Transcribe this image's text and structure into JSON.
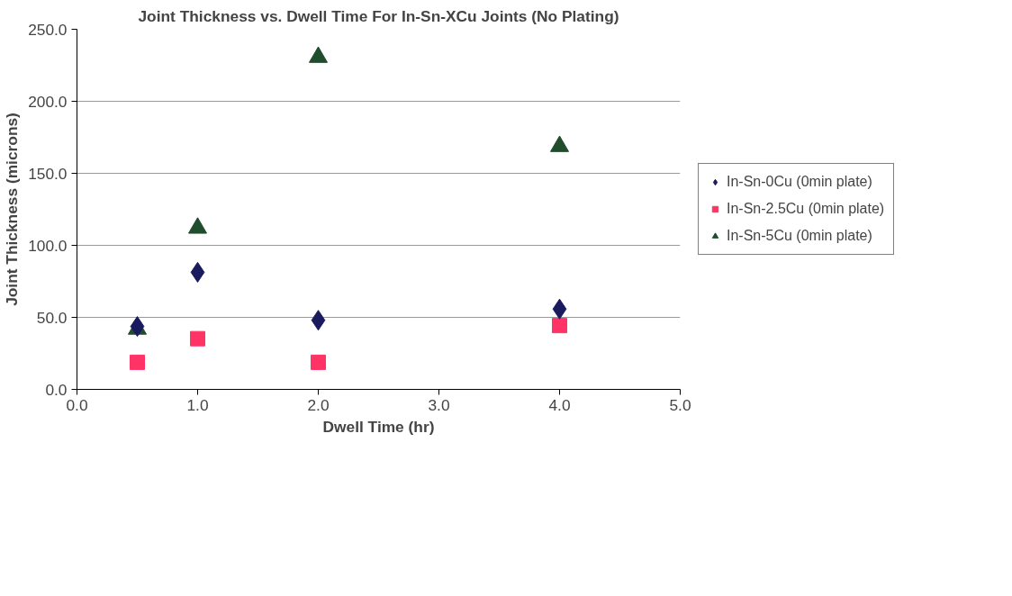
{
  "chart_data": {
    "type": "scatter",
    "title": "Joint Thickness vs. Dwell Time For In-Sn-XCu Joints (No Plating)",
    "xlabel": "Dwell Time (hr)",
    "ylabel": "Joint Thickness (microns)",
    "xlim": [
      0,
      5
    ],
    "ylim": [
      0,
      250
    ],
    "xticks": [
      {
        "value": 0,
        "label": "0.0"
      },
      {
        "value": 1,
        "label": "1.0"
      },
      {
        "value": 2,
        "label": "2.0"
      },
      {
        "value": 3,
        "label": "3.0"
      },
      {
        "value": 4,
        "label": "4.0"
      },
      {
        "value": 5,
        "label": "5.0"
      }
    ],
    "yticks": [
      {
        "value": 0,
        "label": "0.0"
      },
      {
        "value": 50,
        "label": "50.0"
      },
      {
        "value": 100,
        "label": "100.0"
      },
      {
        "value": 150,
        "label": "150.0"
      },
      {
        "value": 200,
        "label": "200.0"
      },
      {
        "value": 250,
        "label": "250.0"
      }
    ],
    "grid": "y",
    "legend": "right",
    "series": [
      {
        "name": "In-Sn-0Cu (0min plate)",
        "color": "#1a1a5e",
        "marker": "diamond",
        "x": [
          0.5,
          1,
          2,
          4
        ],
        "values": [
          43.7,
          81.3,
          48,
          55.8
        ]
      },
      {
        "name": "In-Sn-2.5Cu (0min plate)",
        "color": "#ff3366",
        "marker": "square",
        "x": [
          0.5,
          1,
          2,
          4
        ],
        "values": [
          18.8,
          35.2,
          18.8,
          44.3
        ]
      },
      {
        "name": "In-Sn-5Cu (0min plate)",
        "color": "#1f4d2e",
        "marker": "triangle",
        "x": [
          0.5,
          1,
          2,
          4
        ],
        "values": [
          41.9,
          112,
          230.6,
          168.7
        ]
      }
    ]
  }
}
